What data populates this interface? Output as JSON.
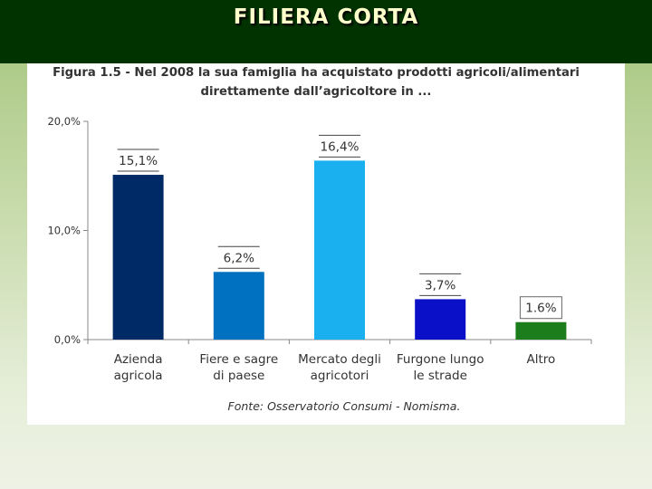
{
  "slide": {
    "title": "FILIERA CORTA"
  },
  "colors": {
    "header_bg": "#003300",
    "title_text": "#ffffcc",
    "axis": "#888888",
    "text": "#333333"
  },
  "chart_data": {
    "type": "bar",
    "title_line1": "Figura 1.5 - Nel 2008 la sua famiglia ha acquistato prodotti agricoli/alimentari",
    "title_line2": "direttamente dall’agricoltore in ...",
    "categories": [
      [
        "Azienda",
        "agricola"
      ],
      [
        "Fiere e sagre",
        "di paese"
      ],
      [
        "Mercato degli",
        "agricotori"
      ],
      [
        "Furgone lungo",
        "le strade"
      ],
      [
        "Altro"
      ]
    ],
    "values": [
      15.1,
      6.2,
      16.4,
      3.7,
      1.6
    ],
    "value_labels": [
      "15,1%",
      "6,2%",
      "16,4%",
      "3,7%",
      "1.6%"
    ],
    "bar_colors": [
      "#002a66",
      "#0070c0",
      "#1ab0ef",
      "#0a10c8",
      "#1b7d1b"
    ],
    "yticks": [
      0,
      10,
      20
    ],
    "ytick_labels": [
      "0,0%",
      "10,0%",
      "20,0%"
    ],
    "ylim": [
      0,
      20
    ],
    "grid": false,
    "source": "Fonte: Osservatorio Consumi - Nomisma."
  }
}
